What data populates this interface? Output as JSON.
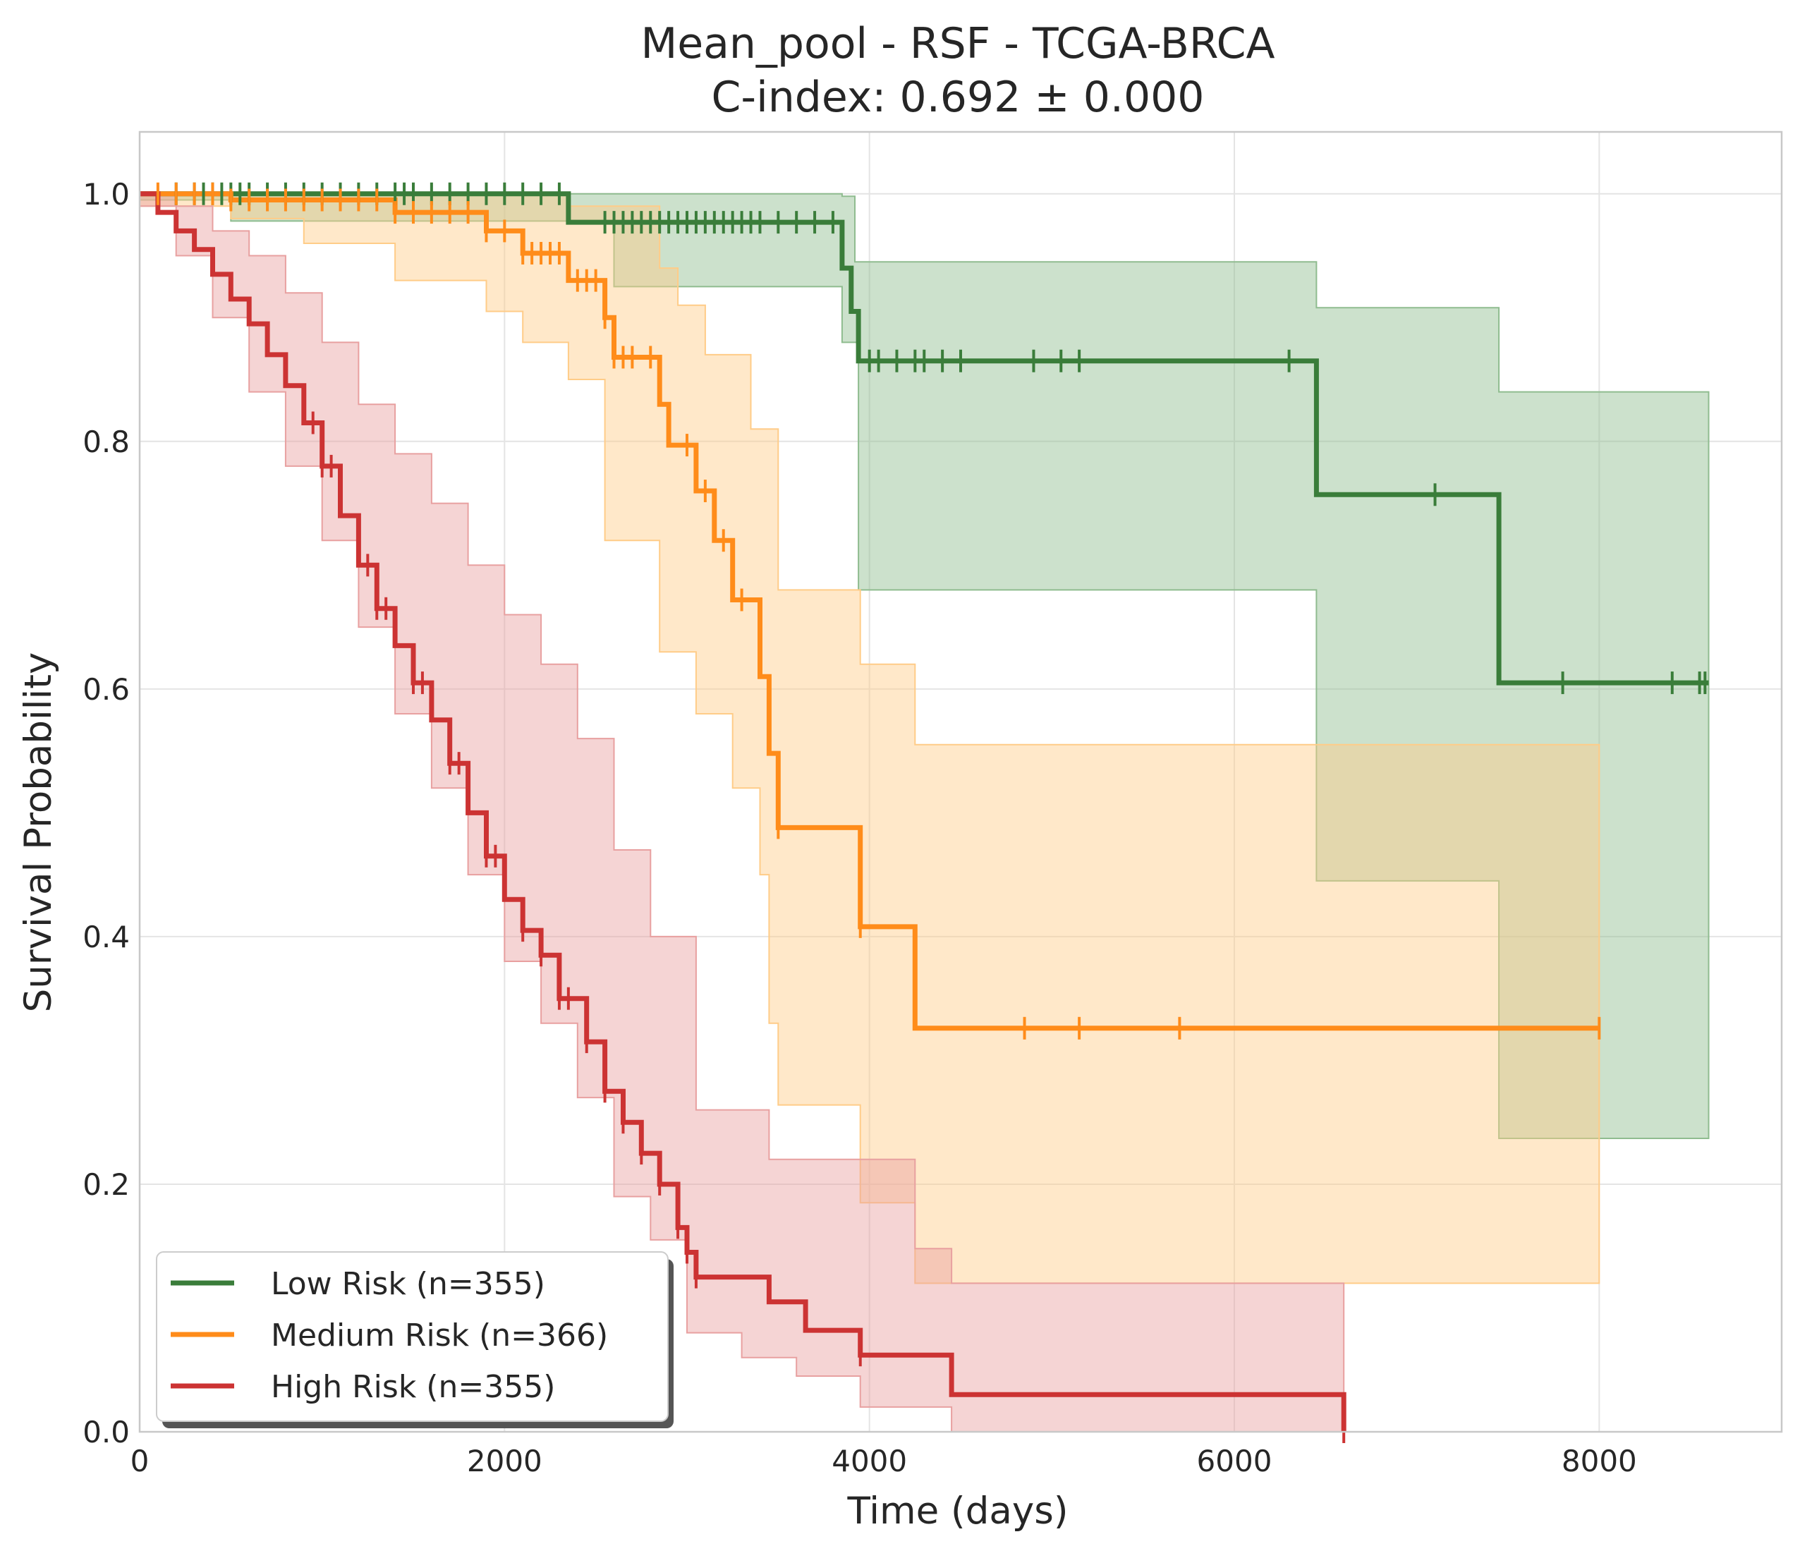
{
  "chart_data": {
    "type": "line",
    "subtype": "kaplan-meier survival curve with confidence bands and censor ticks",
    "title": "Mean_pool - RSF - TCGA-BRCA",
    "subtitle": "C-index: 0.692 ± 0.000",
    "xlabel": "Time (days)",
    "ylabel": "Survival Probability",
    "xlim": [
      0,
      9000
    ],
    "ylim": [
      0,
      1.05
    ],
    "xticks": [
      0,
      2000,
      4000,
      6000,
      8000
    ],
    "xtick_labels": [
      "0",
      "2000",
      "4000",
      "6000",
      "8000"
    ],
    "yticks": [
      0.0,
      0.2,
      0.4,
      0.6,
      0.8,
      1.0
    ],
    "ytick_labels": [
      "0.0",
      "0.2",
      "0.4",
      "0.6",
      "0.8",
      "1.0"
    ],
    "grid": true,
    "legend_position": "lower-left",
    "series": [
      {
        "name": "Low Risk (n=355)",
        "color": "#3a7d3a",
        "band_color": "#8fbc8f",
        "steps": [
          [
            0,
            1.0
          ],
          [
            2350,
            0.977
          ],
          [
            3850,
            0.94
          ],
          [
            3900,
            0.905
          ],
          [
            3940,
            0.865
          ],
          [
            6450,
            0.757
          ],
          [
            7450,
            0.605
          ],
          [
            8600,
            0.605
          ]
        ],
        "ci_upper": [
          [
            0,
            1.0
          ],
          [
            3850,
            0.998
          ],
          [
            3920,
            0.945
          ],
          [
            6450,
            0.908
          ],
          [
            7450,
            0.84
          ],
          [
            8600,
            0.84
          ]
        ],
        "ci_lower": [
          [
            0,
            0.995
          ],
          [
            500,
            0.978
          ],
          [
            2600,
            0.925
          ],
          [
            3850,
            0.88
          ],
          [
            3940,
            0.68
          ],
          [
            6450,
            0.445
          ],
          [
            7450,
            0.237
          ],
          [
            8600,
            0.237
          ]
        ],
        "censor_times": [
          200,
          300,
          350,
          400,
          450,
          500,
          550,
          600,
          700,
          800,
          900,
          1000,
          1100,
          1200,
          1300,
          1400,
          1450,
          1500,
          1600,
          1700,
          1800,
          1900,
          2000,
          2100,
          2200,
          2300,
          2550,
          2600,
          2650,
          2700,
          2750,
          2800,
          2850,
          2900,
          2950,
          3000,
          3050,
          3100,
          3150,
          3200,
          3250,
          3300,
          3350,
          3400,
          3500,
          3600,
          3700,
          3800,
          4000,
          4050,
          4150,
          4250,
          4300,
          4400,
          4500,
          4900,
          5050,
          5150,
          6300,
          7100,
          7800,
          8400,
          8550,
          8580
        ]
      },
      {
        "name": "Medium Risk (n=366)",
        "color": "#ff8c1a",
        "band_color": "#ffcc88",
        "steps": [
          [
            0,
            1.0
          ],
          [
            500,
            0.995
          ],
          [
            1400,
            0.985
          ],
          [
            1900,
            0.97
          ],
          [
            2100,
            0.952
          ],
          [
            2350,
            0.93
          ],
          [
            2550,
            0.9
          ],
          [
            2600,
            0.868
          ],
          [
            2850,
            0.83
          ],
          [
            2900,
            0.797
          ],
          [
            3050,
            0.76
          ],
          [
            3150,
            0.72
          ],
          [
            3250,
            0.672
          ],
          [
            3400,
            0.61
          ],
          [
            3450,
            0.548
          ],
          [
            3500,
            0.488
          ],
          [
            3950,
            0.408
          ],
          [
            4250,
            0.326
          ],
          [
            8000,
            0.326
          ]
        ],
        "ci_upper": [
          [
            0,
            1.0
          ],
          [
            2350,
            0.99
          ],
          [
            2850,
            0.94
          ],
          [
            2950,
            0.91
          ],
          [
            3100,
            0.87
          ],
          [
            3350,
            0.81
          ],
          [
            3500,
            0.68
          ],
          [
            3950,
            0.62
          ],
          [
            4250,
            0.555
          ],
          [
            8000,
            0.555
          ]
        ],
        "ci_lower": [
          [
            0,
            0.99
          ],
          [
            500,
            0.98
          ],
          [
            900,
            0.96
          ],
          [
            1400,
            0.93
          ],
          [
            1900,
            0.905
          ],
          [
            2100,
            0.88
          ],
          [
            2350,
            0.85
          ],
          [
            2550,
            0.72
          ],
          [
            2850,
            0.63
          ],
          [
            3050,
            0.58
          ],
          [
            3250,
            0.52
          ],
          [
            3400,
            0.45
          ],
          [
            3450,
            0.33
          ],
          [
            3500,
            0.264
          ],
          [
            3950,
            0.185
          ],
          [
            4250,
            0.12
          ],
          [
            8000,
            0.12
          ]
        ],
        "censor_times": [
          100,
          200,
          300,
          400,
          500,
          600,
          700,
          800,
          900,
          1000,
          1100,
          1200,
          1300,
          1400,
          1500,
          1600,
          1700,
          1800,
          1900,
          2000,
          2100,
          2150,
          2200,
          2250,
          2300,
          2400,
          2450,
          2500,
          2550,
          2600,
          2650,
          2700,
          2800,
          3000,
          3100,
          3200,
          3300,
          3500,
          3950,
          4850,
          5150,
          5700,
          8000
        ]
      },
      {
        "name": "High Risk (n=355)",
        "color": "#cc3333",
        "band_color": "#e8a0a0",
        "steps": [
          [
            0,
            1.0
          ],
          [
            100,
            0.985
          ],
          [
            200,
            0.97
          ],
          [
            300,
            0.955
          ],
          [
            400,
            0.935
          ],
          [
            500,
            0.915
          ],
          [
            600,
            0.895
          ],
          [
            700,
            0.87
          ],
          [
            800,
            0.845
          ],
          [
            900,
            0.815
          ],
          [
            1000,
            0.78
          ],
          [
            1100,
            0.74
          ],
          [
            1200,
            0.7
          ],
          [
            1300,
            0.665
          ],
          [
            1400,
            0.635
          ],
          [
            1500,
            0.605
          ],
          [
            1600,
            0.575
          ],
          [
            1700,
            0.54
          ],
          [
            1800,
            0.5
          ],
          [
            1900,
            0.465
          ],
          [
            2000,
            0.43
          ],
          [
            2100,
            0.405
          ],
          [
            2200,
            0.385
          ],
          [
            2300,
            0.35
          ],
          [
            2450,
            0.315
          ],
          [
            2550,
            0.275
          ],
          [
            2650,
            0.25
          ],
          [
            2750,
            0.225
          ],
          [
            2850,
            0.2
          ],
          [
            2950,
            0.165
          ],
          [
            3000,
            0.145
          ],
          [
            3050,
            0.125
          ],
          [
            3450,
            0.105
          ],
          [
            3650,
            0.082
          ],
          [
            3950,
            0.062
          ],
          [
            4450,
            0.03
          ],
          [
            6600,
            0.0
          ]
        ],
        "ci_upper": [
          [
            0,
            1.0
          ],
          [
            200,
            0.99
          ],
          [
            400,
            0.97
          ],
          [
            600,
            0.95
          ],
          [
            800,
            0.92
          ],
          [
            1000,
            0.88
          ],
          [
            1200,
            0.83
          ],
          [
            1400,
            0.79
          ],
          [
            1600,
            0.75
          ],
          [
            1800,
            0.7
          ],
          [
            2000,
            0.66
          ],
          [
            2200,
            0.62
          ],
          [
            2400,
            0.56
          ],
          [
            2600,
            0.47
          ],
          [
            2800,
            0.4
          ],
          [
            3050,
            0.26
          ],
          [
            3450,
            0.22
          ],
          [
            4250,
            0.148
          ],
          [
            4450,
            0.12
          ],
          [
            6600,
            0.12
          ]
        ],
        "ci_lower": [
          [
            0,
            0.99
          ],
          [
            200,
            0.95
          ],
          [
            400,
            0.9
          ],
          [
            600,
            0.84
          ],
          [
            800,
            0.78
          ],
          [
            1000,
            0.72
          ],
          [
            1200,
            0.65
          ],
          [
            1400,
            0.58
          ],
          [
            1600,
            0.52
          ],
          [
            1800,
            0.45
          ],
          [
            2000,
            0.38
          ],
          [
            2200,
            0.33
          ],
          [
            2400,
            0.27
          ],
          [
            2600,
            0.19
          ],
          [
            2800,
            0.155
          ],
          [
            3000,
            0.08
          ],
          [
            3300,
            0.06
          ],
          [
            3600,
            0.045
          ],
          [
            3950,
            0.02
          ],
          [
            4450,
            0.0
          ],
          [
            6600,
            0.0
          ]
        ],
        "censor_times": [
          950,
          1000,
          1050,
          1250,
          1300,
          1350,
          1500,
          1550,
          1700,
          1750,
          1900,
          1950,
          2100,
          2200,
          2300,
          2350,
          2450,
          2550,
          2650,
          2750,
          2850,
          2950,
          3000,
          3050,
          3950,
          6600
        ]
      }
    ]
  }
}
